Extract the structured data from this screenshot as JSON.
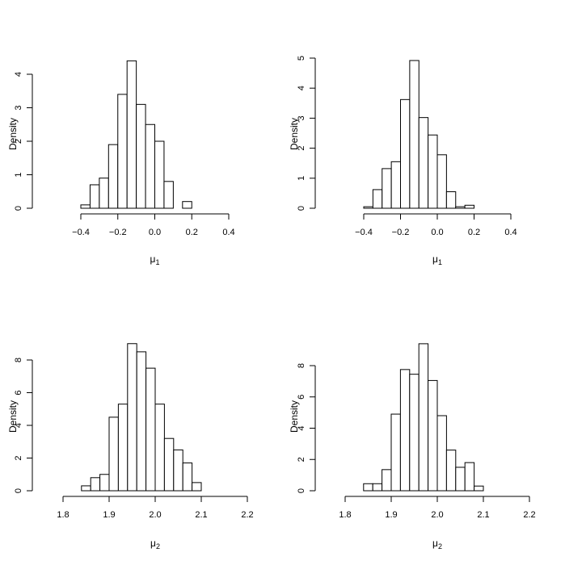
{
  "chart_data": [
    {
      "type": "bar",
      "panel": "top-left",
      "xlabel_symbol": "μ",
      "xlabel_subscript": "1",
      "ylabel": "Density",
      "xlim": [
        -0.5,
        0.4
      ],
      "ylim": [
        0,
        4.4
      ],
      "x_ticks": [
        -0.4,
        -0.2,
        0.0,
        0.2,
        0.4
      ],
      "x_tick_labels": [
        "−0.4",
        "−0.2",
        "0.0",
        "0.2",
        "0.4"
      ],
      "y_ticks": [
        0,
        1,
        2,
        3,
        4
      ],
      "y_tick_labels": [
        "0",
        "1",
        "2",
        "3",
        "4"
      ],
      "bins": [
        -0.4,
        -0.35,
        -0.3,
        -0.25,
        -0.2,
        -0.15,
        -0.1,
        -0.05,
        0.0,
        0.05,
        0.1,
        0.15,
        0.2
      ],
      "densities": [
        0.1,
        0.7,
        0.9,
        1.9,
        3.4,
        4.4,
        3.1,
        2.5,
        2.0,
        0.8,
        0.0,
        0.2
      ]
    },
    {
      "type": "bar",
      "panel": "top-right",
      "xlabel_symbol": "μ",
      "xlabel_subscript": "1",
      "ylabel": "Density",
      "xlim": [
        -0.5,
        0.4
      ],
      "ylim": [
        0,
        5
      ],
      "x_ticks": [
        -0.4,
        -0.2,
        0.0,
        0.2,
        0.4
      ],
      "x_tick_labels": [
        "−0.4",
        "−0.2",
        "0.0",
        "0.2",
        "0.4"
      ],
      "y_ticks": [
        0,
        1,
        2,
        3,
        4,
        5
      ],
      "y_tick_labels": [
        "0",
        "1",
        "2",
        "3",
        "4",
        "5"
      ],
      "bins": [
        -0.4,
        -0.35,
        -0.3,
        -0.25,
        -0.2,
        -0.15,
        -0.1,
        -0.05,
        0.0,
        0.05,
        0.1,
        0.15,
        0.2
      ],
      "densities": [
        0.05,
        0.62,
        1.32,
        1.55,
        3.62,
        4.92,
        3.02,
        2.44,
        1.78,
        0.55,
        0.05,
        0.1
      ]
    },
    {
      "type": "bar",
      "panel": "bottom-left",
      "xlabel_symbol": "μ",
      "xlabel_subscript": "2",
      "ylabel": "Density",
      "xlim": [
        1.8,
        2.2
      ],
      "ylim": [
        0,
        9
      ],
      "x_ticks": [
        1.8,
        1.9,
        2.0,
        2.1,
        2.2
      ],
      "x_tick_labels": [
        "1.8",
        "1.9",
        "2.0",
        "2.1",
        "2.2"
      ],
      "y_ticks": [
        0,
        2,
        4,
        6,
        8
      ],
      "y_tick_labels": [
        "0",
        "2",
        "4",
        "6",
        "8"
      ],
      "bins": [
        1.84,
        1.86,
        1.88,
        1.9,
        1.92,
        1.94,
        1.96,
        1.98,
        2.0,
        2.02,
        2.04,
        2.06,
        2.08,
        2.1
      ],
      "densities": [
        0.3,
        0.8,
        1.0,
        4.5,
        5.3,
        9.0,
        8.5,
        7.5,
        5.3,
        3.2,
        2.5,
        1.7,
        0.5
      ]
    },
    {
      "type": "bar",
      "panel": "bottom-right",
      "xlabel_symbol": "μ",
      "xlabel_subscript": "2",
      "ylabel": "Density",
      "xlim": [
        1.8,
        2.2
      ],
      "ylim": [
        0,
        9.4
      ],
      "x_ticks": [
        1.8,
        1.9,
        2.0,
        2.1,
        2.2
      ],
      "x_tick_labels": [
        "1.8",
        "1.9",
        "2.0",
        "2.1",
        "2.2"
      ],
      "y_ticks": [
        0,
        2,
        4,
        6,
        8
      ],
      "y_tick_labels": [
        "0",
        "2",
        "4",
        "6",
        "8"
      ],
      "bins": [
        1.84,
        1.86,
        1.88,
        1.9,
        1.92,
        1.94,
        1.96,
        1.98,
        2.0,
        2.02,
        2.04,
        2.06,
        2.08,
        2.1
      ],
      "densities": [
        0.45,
        0.45,
        1.35,
        4.9,
        7.75,
        7.45,
        9.4,
        7.05,
        4.8,
        2.6,
        1.5,
        1.8,
        0.3
      ]
    }
  ]
}
